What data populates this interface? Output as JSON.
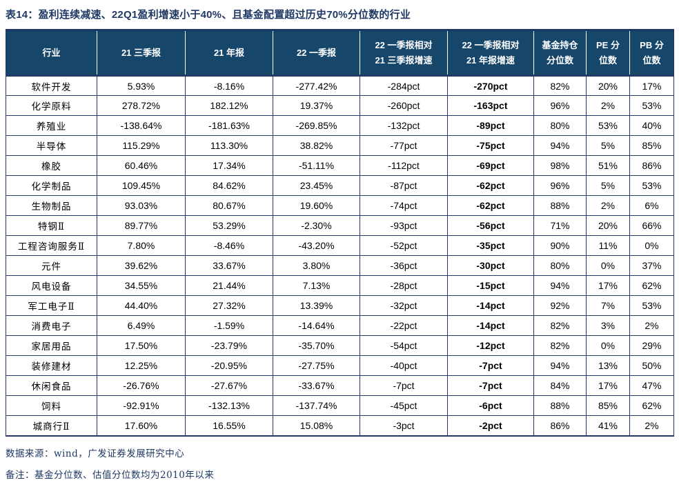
{
  "title": "表14：盈利连续减速、22Q1盈利增速小于40%、且基金配置超过历史70%分位数的行业",
  "colors": {
    "header_bg": "#17466B",
    "border": "#1F3864",
    "title_text": "#1F3864",
    "footer_text": "#1F3864",
    "cell_text": "#000000"
  },
  "table": {
    "headers": [
      {
        "lines": [
          "行业"
        ]
      },
      {
        "lines": [
          "21 三季报"
        ]
      },
      {
        "lines": [
          "21 年报"
        ]
      },
      {
        "lines": [
          "22 一季报"
        ]
      },
      {
        "lines": [
          "22 一季报相对",
          "21 三季报增速"
        ]
      },
      {
        "lines": [
          "22 一季报相对",
          "21 年报增速"
        ]
      },
      {
        "lines": [
          "基金持仓",
          "分位数"
        ]
      },
      {
        "lines": [
          "PE 分",
          "位数"
        ]
      },
      {
        "lines": [
          "PB 分",
          "位数"
        ]
      }
    ],
    "bold_column_index": 5,
    "rows": [
      [
        "软件开发",
        "5.93%",
        "-8.16%",
        "-277.42%",
        "-284pct",
        "-270pct",
        "82%",
        "20%",
        "17%"
      ],
      [
        "化学原料",
        "278.72%",
        "182.12%",
        "19.37%",
        "-260pct",
        "-163pct",
        "96%",
        "2%",
        "53%"
      ],
      [
        "养殖业",
        "-138.64%",
        "-181.63%",
        "-269.85%",
        "-132pct",
        "-89pct",
        "80%",
        "53%",
        "40%"
      ],
      [
        "半导体",
        "115.29%",
        "113.30%",
        "38.82%",
        "-77pct",
        "-75pct",
        "94%",
        "5%",
        "85%"
      ],
      [
        "橡胶",
        "60.46%",
        "17.34%",
        "-51.11%",
        "-112pct",
        "-69pct",
        "98%",
        "51%",
        "86%"
      ],
      [
        "化学制品",
        "109.45%",
        "84.62%",
        "23.45%",
        "-87pct",
        "-62pct",
        "96%",
        "5%",
        "53%"
      ],
      [
        "生物制品",
        "93.03%",
        "80.67%",
        "19.60%",
        "-74pct",
        "-62pct",
        "88%",
        "2%",
        "6%"
      ],
      [
        "特钢Ⅱ",
        "89.77%",
        "53.29%",
        "-2.30%",
        "-93pct",
        "-56pct",
        "71%",
        "20%",
        "66%"
      ],
      [
        "工程咨询服务Ⅱ",
        "7.80%",
        "-8.46%",
        "-43.20%",
        "-52pct",
        "-35pct",
        "90%",
        "11%",
        "0%"
      ],
      [
        "元件",
        "39.62%",
        "33.67%",
        "3.80%",
        "-36pct",
        "-30pct",
        "80%",
        "0%",
        "37%"
      ],
      [
        "风电设备",
        "34.55%",
        "21.44%",
        "7.13%",
        "-28pct",
        "-15pct",
        "94%",
        "17%",
        "62%"
      ],
      [
        "军工电子Ⅱ",
        "44.40%",
        "27.32%",
        "13.39%",
        "-32pct",
        "-14pct",
        "92%",
        "7%",
        "53%"
      ],
      [
        "消费电子",
        "6.49%",
        "-1.59%",
        "-14.64%",
        "-22pct",
        "-14pct",
        "82%",
        "3%",
        "2%"
      ],
      [
        "家居用品",
        "17.50%",
        "-23.79%",
        "-35.70%",
        "-54pct",
        "-12pct",
        "82%",
        "0%",
        "29%"
      ],
      [
        "装修建材",
        "12.25%",
        "-20.95%",
        "-27.75%",
        "-40pct",
        "-7pct",
        "94%",
        "13%",
        "50%"
      ],
      [
        "休闲食品",
        "-26.76%",
        "-27.67%",
        "-33.67%",
        "-7pct",
        "-7pct",
        "84%",
        "17%",
        "47%"
      ],
      [
        "饲料",
        "-92.91%",
        "-132.13%",
        "-137.74%",
        "-45pct",
        "-6pct",
        "88%",
        "85%",
        "62%"
      ],
      [
        "城商行Ⅱ",
        "17.60%",
        "16.55%",
        "15.08%",
        "-3pct",
        "-2pct",
        "86%",
        "41%",
        "2%"
      ]
    ]
  },
  "footer": {
    "source": "数据来源：wind，广发证券发展研究中心",
    "note": "备注：基金分位数、估值分位数均为2010年以来"
  }
}
